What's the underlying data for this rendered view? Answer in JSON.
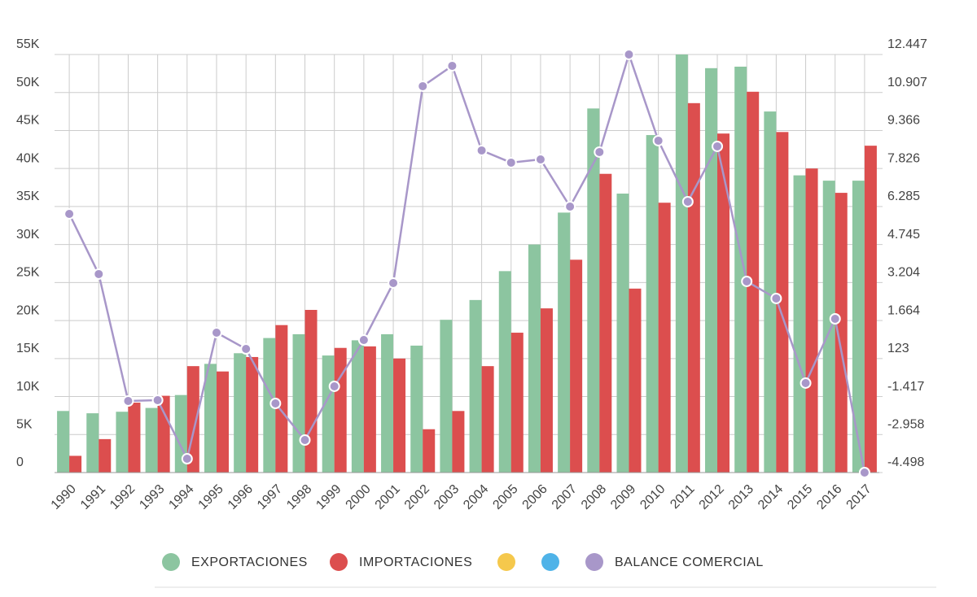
{
  "chart_data": {
    "type": "bar_line",
    "categories": [
      "1990",
      "1991",
      "1992",
      "1993",
      "1994",
      "1995",
      "1996",
      "1997",
      "1998",
      "1999",
      "2000",
      "2001",
      "2002",
      "2003",
      "2004",
      "2005",
      "2006",
      "2007",
      "2008",
      "2009",
      "2010",
      "2011",
      "2012",
      "2013",
      "2014",
      "2015",
      "2016",
      "2017"
    ],
    "series": [
      {
        "name": "EXPORTACIONES",
        "color": "#8cc5a0",
        "type": "bar",
        "values": [
          8100,
          7800,
          8000,
          8500,
          10200,
          14300,
          15700,
          17700,
          18200,
          15400,
          17400,
          18200,
          16700,
          20100,
          22700,
          26500,
          30000,
          34200,
          47900,
          36700,
          44400,
          55000,
          53200,
          53400,
          47500,
          39100,
          38400,
          38400
        ]
      },
      {
        "name": "IMPORTACIONES",
        "color": "#dc4e4e",
        "type": "bar",
        "values": [
          2200,
          4400,
          9200,
          10100,
          14000,
          13300,
          15200,
          19400,
          21400,
          16400,
          16600,
          15000,
          5700,
          8100,
          14000,
          18400,
          21600,
          28000,
          39300,
          24200,
          35500,
          48600,
          44600,
          50100,
          44800,
          40000,
          36800,
          43000
        ]
      },
      {
        "name": "BALANCE COMERCIAL",
        "color": "#a897c9",
        "type": "line",
        "axis": "y2",
        "values": [
          5986,
          3547,
          -1597,
          -1564,
          -3938,
          1173,
          513,
          -1696,
          -3179,
          -1003,
          876,
          3184,
          11163,
          11987,
          8558,
          8064,
          8195,
          6283,
          8492,
          12447,
          8954,
          6481,
          8723,
          3250,
          2558,
          -871,
          1733,
          -4498
        ]
      }
    ],
    "ylim": [
      0,
      55000
    ],
    "yticks": [
      0,
      {
        "value": 5000,
        "label": "5K"
      },
      {
        "value": 10000,
        "label": "10K"
      },
      {
        "value": 15000,
        "label": "15K"
      },
      {
        "value": 20000,
        "label": "20K"
      },
      {
        "value": 25000,
        "label": "25K"
      },
      {
        "value": 30000,
        "label": "30K"
      },
      {
        "value": 35000,
        "label": "35K"
      },
      {
        "value": 40000,
        "label": "40K"
      },
      {
        "value": 45000,
        "label": "45K"
      },
      {
        "value": 50000,
        "label": "50K"
      },
      {
        "value": 55000,
        "label": "55K"
      }
    ],
    "y2lim": [
      -4498,
      12447
    ],
    "y2ticks": [
      {
        "value": -4498,
        "label": "-4.498"
      },
      {
        "value": -2958,
        "label": "-2.958"
      },
      {
        "value": -1417,
        "label": "-1.417"
      },
      123,
      {
        "value": 1664,
        "label": "1.664"
      },
      {
        "value": 3204,
        "label": "3.204"
      },
      {
        "value": 4745,
        "label": "4.745"
      },
      {
        "value": 6285,
        "label": "6.285"
      },
      {
        "value": 7826,
        "label": "7.826"
      },
      {
        "value": 9366,
        "label": "9.366"
      },
      {
        "value": 10907,
        "label": "10.907"
      },
      {
        "value": 12447,
        "label": "12.447"
      }
    ],
    "grid": true
  }
}
